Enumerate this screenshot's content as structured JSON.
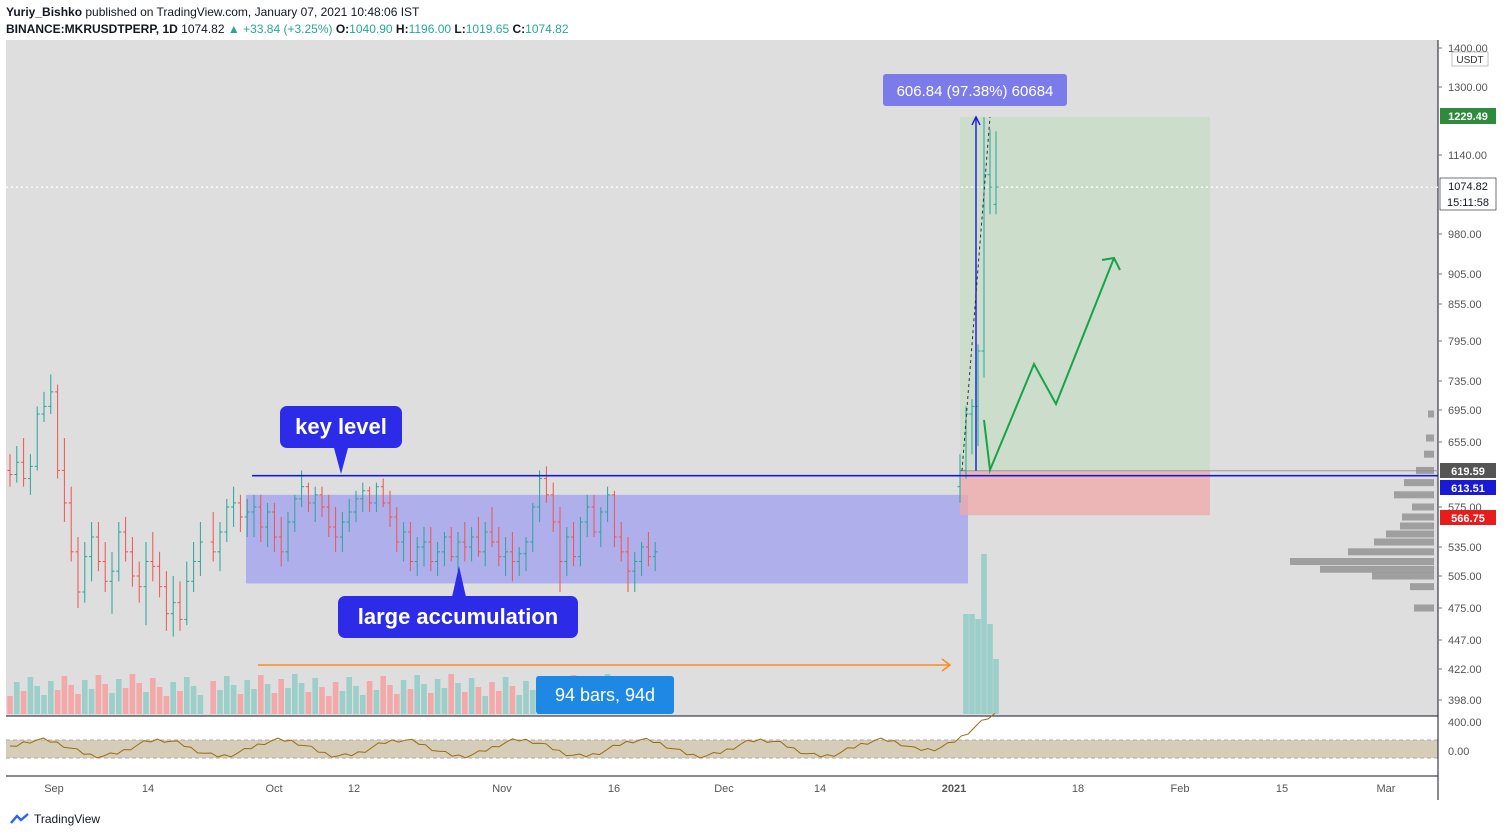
{
  "header": {
    "author": "Yuriy_Bishko",
    "published": "published on TradingView.com, January 07, 2021 10:48:06 IST",
    "symbol": "BINANCE:MKRUSDTPERP, 1D",
    "last": "1074.82",
    "change": "▲ +33.84 (+3.25%)",
    "o_label": "O:",
    "o": "1040.90",
    "h_label": "H:",
    "h": "1196.00",
    "l_label": "L:",
    "l": "1019.65",
    "c_label": "C:",
    "c": "1074.82"
  },
  "footer": {
    "brand": "TradingView"
  },
  "colors": {
    "up": "#26a69a",
    "down": "#ef5350",
    "blue": "#1a1ad6",
    "green": "#16a34a",
    "orange": "#ff8c1a"
  },
  "chart_data": {
    "type": "candlestick",
    "axis_unit": "USDT",
    "price_ticks": [
      "1400.00",
      "1300.00",
      "1140.00",
      "980.00",
      "905.00",
      "855.00",
      "795.00",
      "735.00",
      "695.00",
      "655.00",
      "575.00",
      "535.00",
      "505.00",
      "475.00",
      "447.00",
      "422.00",
      "398.00"
    ],
    "osc_ticks": [
      "400.00",
      "0.00"
    ],
    "time_ticks": [
      "Sep",
      "14",
      "Oct",
      "12",
      "Nov",
      "16",
      "Dec",
      "14",
      "2021",
      "18",
      "Feb",
      "15",
      "Mar"
    ],
    "price_labels": {
      "high": "1229.49",
      "last": "1074.82",
      "countdown": "15:11:58",
      "gray": "619.59",
      "blue": "613.51",
      "red": "566.75"
    },
    "annotations": {
      "key_level": "key level",
      "accumulation": "large accumulation",
      "bars_range": "94 bars, 94d",
      "measure": "606.84 (97.38%) 60684"
    },
    "key_level_price": 613.51,
    "accumulation_range": [
      498,
      590
    ],
    "long_position": {
      "entry": 619.59,
      "target": 1229.49,
      "stop": 566.75
    },
    "ohlc": [
      [
        620,
        640,
        600,
        615
      ],
      [
        615,
        650,
        605,
        630
      ],
      [
        630,
        660,
        600,
        610
      ],
      [
        610,
        640,
        590,
        625
      ],
      [
        625,
        700,
        620,
        690
      ],
      [
        690,
        720,
        680,
        700
      ],
      [
        700,
        745,
        690,
        720
      ],
      [
        720,
        730,
        610,
        620
      ],
      [
        620,
        660,
        560,
        580
      ],
      [
        580,
        600,
        520,
        530
      ],
      [
        530,
        545,
        475,
        490
      ],
      [
        490,
        540,
        480,
        525
      ],
      [
        525,
        560,
        500,
        545
      ],
      [
        545,
        560,
        510,
        520
      ],
      [
        520,
        540,
        490,
        500
      ],
      [
        500,
        530,
        470,
        510
      ],
      [
        510,
        560,
        500,
        550
      ],
      [
        550,
        565,
        520,
        530
      ],
      [
        530,
        545,
        495,
        505
      ],
      [
        505,
        520,
        480,
        495
      ],
      [
        495,
        540,
        460,
        520
      ],
      [
        520,
        550,
        500,
        515
      ],
      [
        515,
        530,
        485,
        495
      ],
      [
        495,
        510,
        455,
        470
      ],
      [
        470,
        505,
        450,
        480
      ],
      [
        480,
        500,
        455,
        465
      ],
      [
        465,
        520,
        460,
        500
      ],
      [
        500,
        540,
        490,
        520
      ],
      [
        520,
        560,
        505,
        540
      ],
      [
        540,
        570,
        520,
        530
      ],
      [
        530,
        560,
        510,
        550
      ],
      [
        550,
        585,
        540,
        575
      ],
      [
        575,
        600,
        555,
        580
      ],
      [
        580,
        590,
        550,
        565
      ],
      [
        565,
        585,
        545,
        570
      ],
      [
        570,
        590,
        545,
        575
      ],
      [
        575,
        590,
        540,
        555
      ],
      [
        555,
        580,
        535,
        570
      ],
      [
        570,
        580,
        530,
        545
      ],
      [
        545,
        565,
        515,
        530
      ],
      [
        530,
        570,
        520,
        560
      ],
      [
        560,
        590,
        550,
        585
      ],
      [
        585,
        620,
        575,
        600
      ],
      [
        600,
        605,
        570,
        580
      ],
      [
        580,
        600,
        560,
        590
      ],
      [
        590,
        600,
        565,
        575
      ],
      [
        575,
        590,
        545,
        555
      ],
      [
        555,
        575,
        530,
        545
      ],
      [
        545,
        570,
        530,
        560
      ],
      [
        560,
        585,
        550,
        570
      ],
      [
        570,
        595,
        560,
        585
      ],
      [
        585,
        605,
        570,
        595
      ],
      [
        595,
        600,
        570,
        580
      ],
      [
        580,
        605,
        570,
        600
      ],
      [
        600,
        610,
        575,
        580
      ],
      [
        580,
        595,
        555,
        565
      ],
      [
        565,
        575,
        530,
        540
      ],
      [
        540,
        560,
        520,
        550
      ],
      [
        550,
        560,
        510,
        520
      ],
      [
        520,
        545,
        505,
        535
      ],
      [
        535,
        555,
        515,
        540
      ],
      [
        540,
        555,
        510,
        520
      ],
      [
        520,
        540,
        505,
        530
      ],
      [
        530,
        550,
        515,
        545
      ],
      [
        545,
        555,
        520,
        525
      ],
      [
        525,
        550,
        510,
        540
      ],
      [
        540,
        560,
        520,
        535
      ],
      [
        535,
        555,
        520,
        545
      ],
      [
        545,
        565,
        525,
        530
      ],
      [
        530,
        560,
        515,
        550
      ],
      [
        550,
        575,
        535,
        540
      ],
      [
        540,
        555,
        515,
        525
      ],
      [
        525,
        545,
        505,
        530
      ],
      [
        530,
        550,
        500,
        520
      ],
      [
        520,
        535,
        505,
        528
      ],
      [
        528,
        545,
        510,
        540
      ],
      [
        540,
        580,
        530,
        575
      ],
      [
        575,
        620,
        560,
        610
      ],
      [
        610,
        625,
        580,
        590
      ],
      [
        590,
        605,
        550,
        560
      ],
      [
        560,
        575,
        490,
        520
      ],
      [
        520,
        555,
        505,
        545
      ],
      [
        545,
        560,
        515,
        525
      ],
      [
        525,
        565,
        515,
        560
      ],
      [
        560,
        590,
        545,
        575
      ],
      [
        575,
        590,
        545,
        550
      ],
      [
        550,
        575,
        535,
        570
      ],
      [
        570,
        600,
        560,
        590
      ],
      [
        590,
        595,
        535,
        545
      ],
      [
        545,
        560,
        520,
        530
      ],
      [
        530,
        545,
        490,
        510
      ],
      [
        510,
        530,
        490,
        520
      ],
      [
        520,
        540,
        505,
        535
      ],
      [
        535,
        550,
        515,
        525
      ],
      [
        525,
        540,
        510,
        530
      ]
    ]
  }
}
